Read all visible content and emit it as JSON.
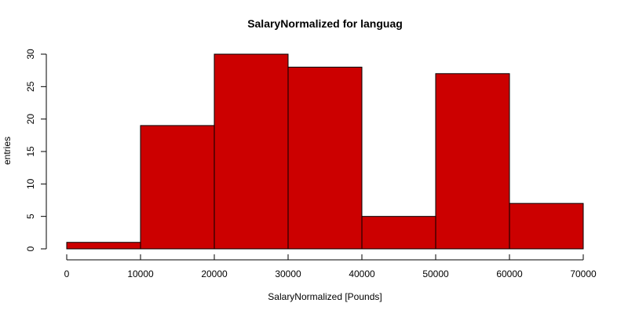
{
  "chart_data": {
    "type": "bar",
    "title": "SalaryNormalized for languag",
    "xlabel": "SalaryNormalized [Pounds]",
    "ylabel": "entries",
    "bins": [
      {
        "x0": 0,
        "x1": 10000,
        "count": 1
      },
      {
        "x0": 10000,
        "x1": 20000,
        "count": 19
      },
      {
        "x0": 20000,
        "x1": 30000,
        "count": 30
      },
      {
        "x0": 30000,
        "x1": 40000,
        "count": 28
      },
      {
        "x0": 40000,
        "x1": 50000,
        "count": 5
      },
      {
        "x0": 50000,
        "x1": 60000,
        "count": 27
      },
      {
        "x0": 60000,
        "x1": 70000,
        "count": 7
      }
    ],
    "xticks": [
      0,
      10000,
      20000,
      30000,
      40000,
      50000,
      60000,
      70000
    ],
    "yticks": [
      0,
      5,
      10,
      15,
      20,
      25,
      30
    ],
    "xlim": [
      0,
      70000
    ],
    "ylim": [
      0,
      30
    ],
    "bar_color": "#cc0000",
    "grid": false
  }
}
